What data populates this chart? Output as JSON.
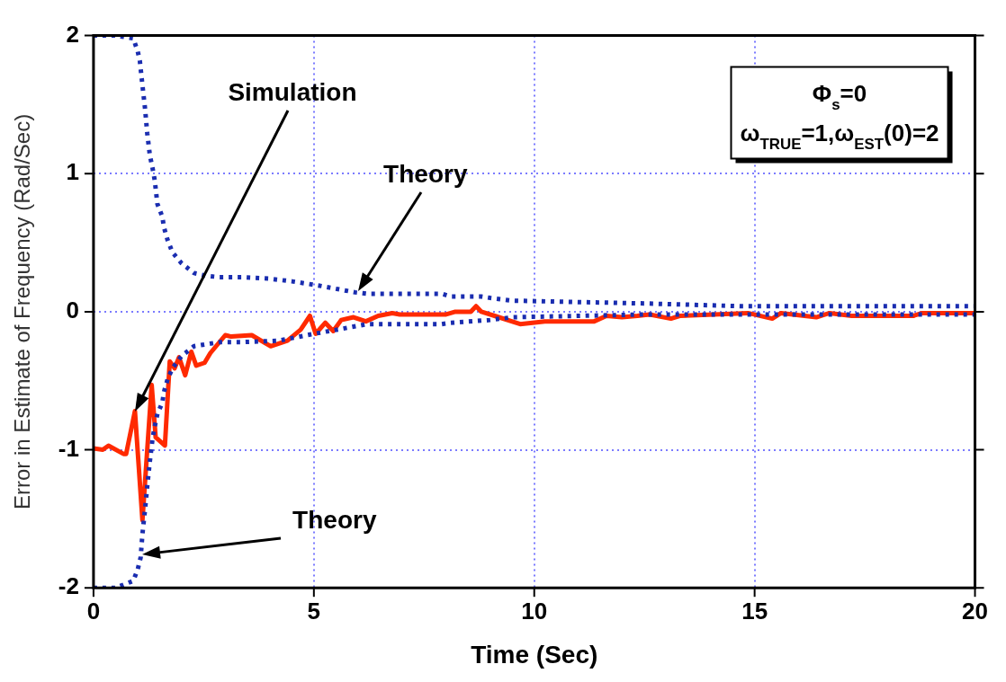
{
  "chart_data": {
    "type": "line",
    "xlabel": "Time (Sec)",
    "ylabel": "Error in Estimate of Frequency (Rad/Sec)",
    "xlim": [
      0,
      20
    ],
    "xticks": [
      0,
      5,
      10,
      15,
      20
    ],
    "ylim": [
      -2,
      2
    ],
    "yticks": [
      -2,
      -1,
      0,
      1,
      2
    ],
    "grid": true,
    "legend": false,
    "series": [
      {
        "color": "#1a2db0",
        "line_style": "dotted",
        "marker": "none",
        "x": [
          0,
          0.5,
          0.9,
          1.0,
          1.05,
          1.11,
          1.17,
          1.22,
          1.28,
          1.34,
          1.39,
          1.45,
          1.56,
          1.6,
          1.68,
          1.79,
          2.0,
          2.28,
          2.56,
          2.86,
          3.4,
          3.97,
          4.5,
          5.1,
          5.94,
          6.2,
          7.9,
          8.1,
          8.8,
          9.0,
          9.5,
          12.5,
          14.7,
          20
        ],
        "values": [
          2,
          2,
          1.98,
          1.89,
          1.82,
          1.64,
          1.47,
          1.29,
          1.13,
          1.04,
          0.95,
          0.78,
          0.69,
          0.61,
          0.52,
          0.43,
          0.35,
          0.28,
          0.26,
          0.25,
          0.25,
          0.24,
          0.22,
          0.19,
          0.14,
          0.13,
          0.13,
          0.11,
          0.11,
          0.1,
          0.08,
          0.06,
          0.04,
          0.04
        ]
      },
      {
        "color": "#1a2db0",
        "line_style": "dotted",
        "marker": "none",
        "x": [
          0,
          0.5,
          0.9,
          1.0,
          1.07,
          1.11,
          1.17,
          1.22,
          1.28,
          1.34,
          1.39,
          1.45,
          1.56,
          1.6,
          1.68,
          1.79,
          2.0,
          2.28,
          2.86,
          3.4,
          4.2,
          5.0,
          5.7,
          6.2,
          7.9,
          8.1,
          9.0,
          9.5,
          12.5,
          20
        ],
        "values": [
          -2,
          -2,
          -1.95,
          -1.87,
          -1.78,
          -1.61,
          -1.43,
          -1.26,
          -1.08,
          -0.92,
          -0.83,
          -0.74,
          -0.66,
          -0.58,
          -0.49,
          -0.41,
          -0.32,
          -0.25,
          -0.22,
          -0.22,
          -0.21,
          -0.16,
          -0.12,
          -0.09,
          -0.09,
          -0.08,
          -0.06,
          -0.04,
          -0.02,
          -0.02
        ]
      },
      {
        "color": "#ff2a00",
        "line_style": "solid",
        "marker": "none",
        "x": [
          0,
          0.21,
          0.34,
          0.68,
          0.74,
          0.94,
          1.11,
          1.32,
          1.41,
          1.62,
          1.73,
          1.84,
          1.94,
          2.08,
          2.22,
          2.33,
          2.52,
          2.65,
          2.99,
          3.12,
          3.59,
          4.02,
          4.4,
          4.7,
          4.91,
          5.04,
          5.26,
          5.44,
          5.62,
          5.9,
          6.18,
          6.46,
          6.78,
          6.95,
          8.0,
          8.21,
          8.56,
          8.68,
          8.8,
          9.1,
          9.68,
          9.96,
          10.24,
          11.36,
          11.64,
          11.99,
          12.34,
          12.62,
          13.1,
          13.3,
          14.85,
          15.4,
          15.6,
          16.4,
          16.7,
          17.2,
          18.6,
          18.8,
          20
        ],
        "values": [
          -0.99,
          -1.0,
          -0.97,
          -1.03,
          -1.03,
          -0.72,
          -1.51,
          -0.53,
          -0.91,
          -0.97,
          -0.36,
          -0.41,
          -0.33,
          -0.46,
          -0.29,
          -0.39,
          -0.37,
          -0.3,
          -0.17,
          -0.18,
          -0.17,
          -0.25,
          -0.21,
          -0.13,
          -0.03,
          -0.16,
          -0.08,
          -0.14,
          -0.06,
          -0.04,
          -0.07,
          -0.03,
          -0.01,
          -0.02,
          -0.02,
          0,
          0,
          0.04,
          0,
          -0.03,
          -0.09,
          -0.08,
          -0.07,
          -0.07,
          -0.03,
          -0.04,
          -0.03,
          -0.02,
          -0.05,
          -0.03,
          -0.01,
          -0.05,
          -0.01,
          -0.04,
          -0.01,
          -0.03,
          -0.03,
          -0.01,
          -0.01
        ]
      }
    ],
    "annotations": [
      "Simulation",
      "Theory",
      "Theory",
      "Φ$_{s}$=0",
      "ω$_{TRUE}$=1,ω$_{EST}$(0)=2"
    ]
  }
}
